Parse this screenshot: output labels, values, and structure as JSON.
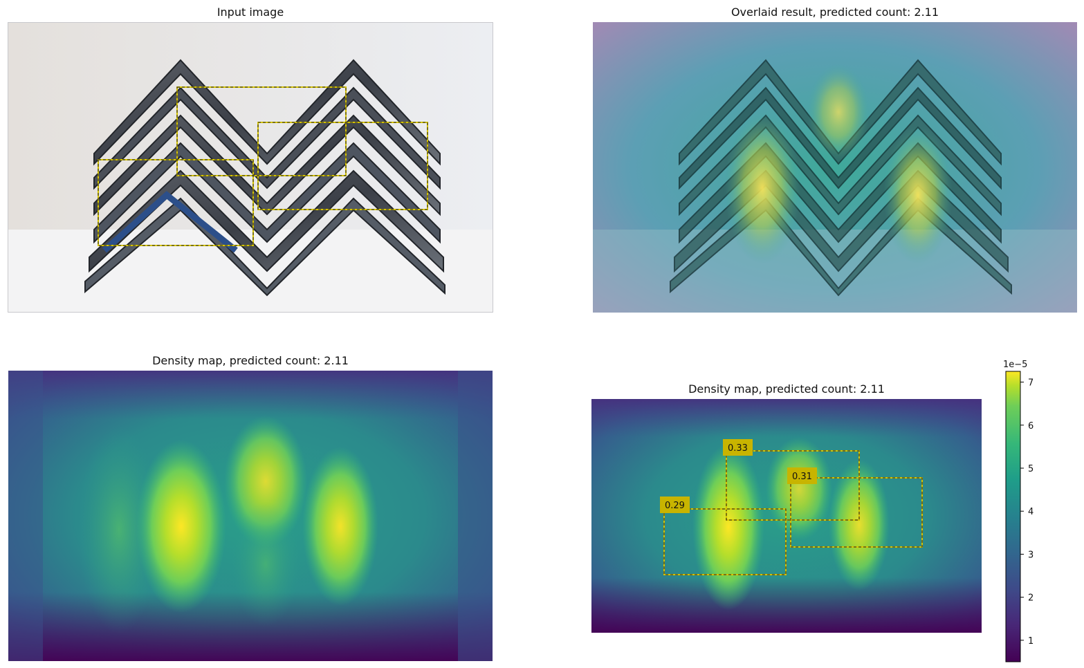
{
  "panels": {
    "input": {
      "title": "Input image"
    },
    "overlay": {
      "title": "Overlaid result, predicted count: 2.11"
    },
    "density": {
      "title": "Density map, predicted count: 2.11"
    },
    "density_boxes": {
      "title": "Density map, predicted count: 2.11"
    }
  },
  "colorbar": {
    "exponent_label": "1e−5",
    "ticks": [
      "1",
      "2",
      "3",
      "4",
      "5",
      "6",
      "7"
    ],
    "range": [
      0.5,
      7.25
    ],
    "colormap": "viridis"
  },
  "chart_data": {
    "type": "heatmap",
    "predicted_count": 2.11,
    "value_scale": "1e-5",
    "clim": [
      0.5,
      7.25
    ],
    "exemplar_boxes": [
      {
        "label": "0.33",
        "value": 0.33
      },
      {
        "label": "0.31",
        "value": 0.31
      },
      {
        "label": "0.29",
        "value": 0.29
      }
    ],
    "colors": {
      "box": "#d4c200",
      "label_bg": "#c8b400"
    }
  }
}
